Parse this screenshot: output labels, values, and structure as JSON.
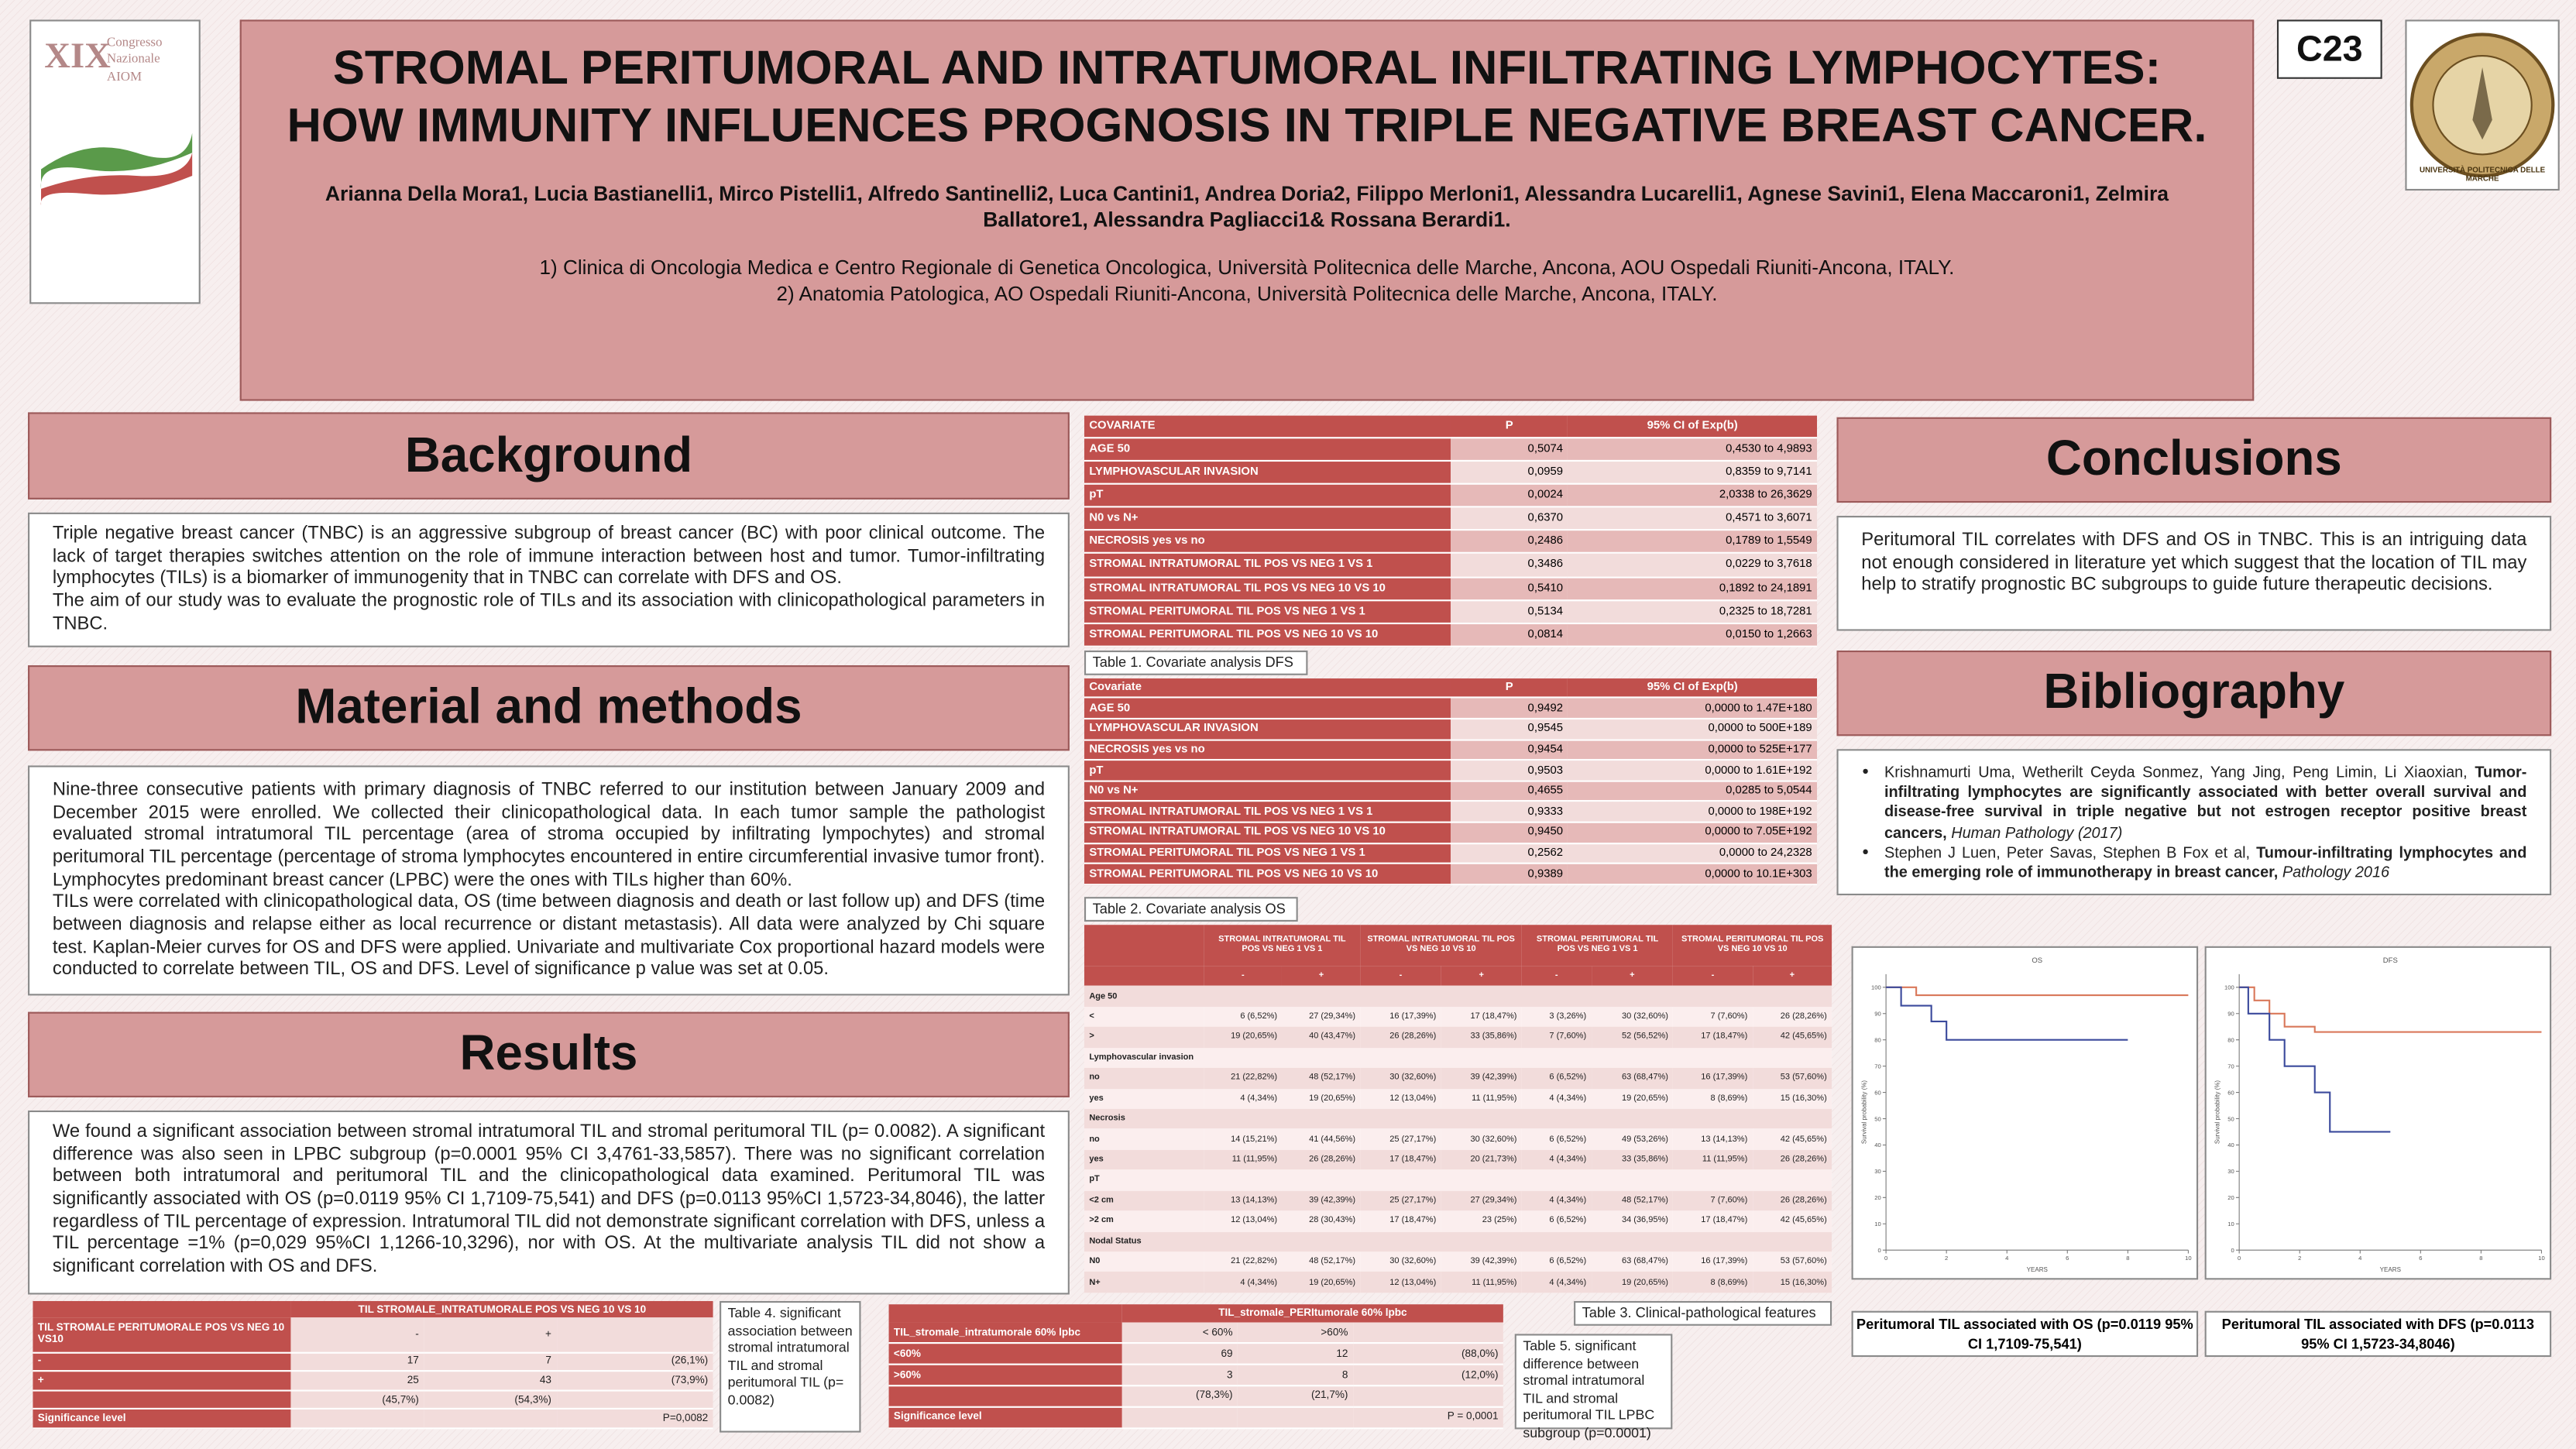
{
  "logo": {
    "number": "XIX",
    "text": "Congresso Nazionale AIOM"
  },
  "university_logo": {
    "text": "UNIVERSITÀ POLITECNICA DELLE MARCHE"
  },
  "header": {
    "title": "STROMAL PERITUMORAL AND INTRATUMORAL INFILTRATING LYMPHOCYTES: HOW IMMUNITY INFLUENCES PROGNOSIS IN TRIPLE NEGATIVE BREAST CANCER.",
    "authors": "Arianna Della Mora1, Lucia Bastianelli1, Mirco Pistelli1, Alfredo Santinelli2, Luca Cantini1, Andrea Doria2, Filippo Merloni1, Alessandra Lucarelli1, Agnese Savini1, Elena Maccaroni1, Zelmira Ballatore1, Alessandra Pagliacci1& Rossana Berardi1.",
    "affiliations": [
      "1) Clinica di Oncologia Medica e Centro Regionale di Genetica Oncologica, Università Politecnica delle Marche, Ancona, AOU Ospedali Riuniti-Ancona,  ITALY.",
      "2) Anatomia Patologica, AO Ospedali Riuniti-Ancona, Università Politecnica delle Marche, Ancona, ITALY."
    ],
    "code": "C23"
  },
  "sections": {
    "background": {
      "heading": "Background",
      "paragraphs": [
        "Triple negative breast cancer (TNBC) is an aggressive subgroup of breast cancer (BC) with poor clinical outcome. The lack of target therapies switches attention on the role of  immune interaction between host and tumor. Tumor-infiltrating lymphocytes (TILs) is a biomarker of immunogenity that in TNBC can correlate with DFS and OS.",
        "The aim of our study was to evaluate the prognostic role of TILs and its association with clinicopathological parameters in TNBC."
      ]
    },
    "methods": {
      "heading": "Material and methods",
      "paragraphs": [
        "Nine-three consecutive patients with primary diagnosis of TNBC referred to our institution between January 2009 and December 2015 were enrolled. We collected their clinicopathological data. In each tumor sample the pathologist evaluated stromal intratumoral TIL percentage (area of stroma occupied by infiltrating lympochytes) and stromal peritumoral TIL percentage (percentage of stroma lymphocytes encountered in entire circumferential invasive tumor front). Lymphocytes predominant breast cancer (LPBC) were the ones with TILs higher than 60%.",
        "TILs were correlated with clinicopathological data, OS (time between diagnosis and death or last follow up) and DFS (time between diagnosis and relapse either as local recurrence or distant metastasis). All data were analyzed by Chi square test. Kaplan-Meier curves for OS and DFS were applied. Univariate and multivariate Cox proportional hazard models were conducted to correlate between TIL, OS and DFS. Level of significance p value was set at 0.05."
      ]
    },
    "results": {
      "heading": "Results",
      "paragraphs": [
        "We found a significant association between stromal intratumoral TIL and stromal peritumoral TIL (p= 0.0082). A significant difference was also seen in LPBC subgroup (p=0.0001 95% CI 3,4761-33,5857). There was no significant correlation between both intratumoral and peritumoral TIL and the clinicopathological data examined. Peritumoral TIL was significantly associated with OS (p=0.0119 95% CI 1,7109-75,541) and DFS (p=0.0113 95%CI 1,5723-34,8046),  the latter regardless of TIL percentage of expression. Intratumoral TIL did not demonstrate significant correlation with DFS, unless a TIL percentage =1% (p=0,029 95%CI 1,1266-10,3296), nor with OS. At the multivariate analysis TIL did not show a significant correlation with OS  and DFS."
      ]
    },
    "conclusions": {
      "heading": "Conclusions",
      "paragraphs": [
        "Peritumoral TIL correlates with DFS and OS in TNBC. This is an intriguing data not enough considered in literature yet which suggest that the location of TIL may help to stratify prognostic BC subgroups to guide future therapeutic decisions."
      ]
    },
    "bibliography": {
      "heading": "Bibliography",
      "entries": [
        {
          "authors": "Krishnamurti Uma, Wetherilt Ceyda Sonmez, Yang Jing, Peng Limin, Li Xiaoxian, ",
          "title": "Tumor-infiltrating lymphocytes are significantly associated with better overall survival and disease-free survival in triple negative but not estrogen receptor positive breast cancers,",
          "source": " Human Pathology (2017)"
        },
        {
          "authors": "Stephen J Luen, Peter Savas, Stephen B Fox et al, ",
          "title": "Tumour-infiltrating lymphocytes and the emerging role of immunotherapy in breast cancer,",
          "source": " Pathology 2016"
        }
      ]
    }
  },
  "tables": [
    {
      "caption": "Table 1. Covariate analysis DFS",
      "header_rows": [
        [
          "COVARIATE",
          "P",
          "95% CI of Exp(b)"
        ]
      ],
      "rows": [
        [
          "AGE 50",
          "0,5074",
          "0,4530 to 4,9893"
        ],
        [
          "LYMPHOVASCULAR INVASION",
          "0,0959",
          "0,8359 to 9,7141"
        ],
        [
          "pT",
          "0,0024",
          "2,0338 to 26,3629"
        ],
        [
          "N0 vs N+",
          "0,6370",
          "0,4571 to 3,6071"
        ],
        [
          "NECROSIS yes vs no",
          "0,2486",
          "0,1789 to 1,5549"
        ],
        [
          "STROMAL INTRATUMORAL TIL POS VS NEG     1 VS 1",
          "0,3486",
          "0,0229 to 3,7618"
        ],
        [
          "STROMAL INTRATUMORAL TIL POS VS NEG     10 VS 10",
          "0,5410",
          "0,1892 to 24,1891"
        ],
        [
          "STROMAL PERITUMORAL TIL POS VS NEG 1 VS 1",
          "0,5134",
          "0,2325 to 18,7281"
        ],
        [
          "STROMAL PERITUMORAL TIL POS VS NEG  10 VS 10",
          "0,0814",
          "0,0150 to 1,2663"
        ]
      ]
    },
    {
      "caption": "Table 2. Covariate analysis OS",
      "header_rows": [
        [
          "Covariate",
          "P",
          "95% CI of Exp(b)"
        ]
      ],
      "rows": [
        [
          "AGE 50",
          "0,9492",
          "0,0000 to 1.47E+180"
        ],
        [
          "LYMPHOVASCULAR INVASION",
          "0,9545",
          "0,0000 to 500E+189"
        ],
        [
          "NECROSIS yes vs no",
          "0,9454",
          "0,0000 to 525E+177"
        ],
        [
          "pT",
          "0,9503",
          "0,0000 to 1.61E+192"
        ],
        [
          "N0 vs N+",
          "0,4655",
          "0,0285 to 5,0544"
        ],
        [
          "STROMAL INTRATUMORAL TIL POS VS NEG     1 VS 1",
          "0,9333",
          "0,0000 to 198E+192"
        ],
        [
          "STROMAL INTRATUMORAL TIL POS VS NEG     10 VS 10",
          "0,9450",
          "0,0000 to 7.05E+192"
        ],
        [
          "STROMAL PERITUMORAL TIL POS VS NEG  1 VS 1",
          "0,2562",
          "0,0000 to 24,2328"
        ],
        [
          "STROMAL PERITUMORAL TIL POS VS NEG  10 VS 10",
          "0,9389",
          "0,0000 to 10.1E+303"
        ]
      ]
    },
    {
      "caption": "Table 3. Clinical-pathological features",
      "header_rows": [
        [
          null,
          "STROMAL INTRATUMORAL TIL POS VS NEG 1 VS 1",
          "STROMAL INTRATUMORAL TIL POS VS NEG 10 VS 10",
          "STROMAL PERITUMORAL TIL POS VS NEG 1 VS 1",
          "STROMAL PERITUMORAL TIL POS VS NEG 10 VS 10"
        ],
        [
          null,
          "-",
          "+",
          "-",
          "+",
          "-",
          "+",
          "-",
          "+"
        ]
      ],
      "rows": [
        [
          "Age 50"
        ],
        [
          "<",
          "6 (6,52%)",
          "27 (29,34%)",
          "16 (17,39%)",
          "17 (18,47%)",
          "3 (3,26%)",
          "30 (32,60%)",
          "7 (7,60%)",
          "26 (28,26%)"
        ],
        [
          ">",
          "19 (20,65%)",
          "40 (43,47%)",
          "26 (28,26%)",
          "33 (35,86%)",
          "7 (7,60%)",
          "52 (56,52%)",
          "17 (18,47%)",
          "42 (45,65%)"
        ],
        [
          "Lymphovascular invasion"
        ],
        [
          "no",
          "21 (22,82%)",
          "48 (52,17%)",
          "30 (32,60%)",
          "39 (42,39%)",
          "6 (6,52%)",
          "63 (68,47%)",
          "16 (17,39%)",
          "53 (57,60%)"
        ],
        [
          "yes",
          "4 (4,34%)",
          "19 (20,65%)",
          "12 (13,04%)",
          "11 (11,95%)",
          "4 (4,34%)",
          "19 (20,65%)",
          "8 (8,69%)",
          "15 (16,30%)"
        ],
        [
          "Necrosis"
        ],
        [
          "no",
          "14 (15,21%)",
          "41 (44,56%)",
          "25 (27,17%)",
          "30 (32,60%)",
          "6 (6,52%)",
          "49 (53,26%)",
          "13 (14,13%)",
          "42 (45,65%)"
        ],
        [
          "yes",
          "11 (11,95%)",
          "26 (28,26%)",
          "17 (18,47%)",
          "20 (21,73%)",
          "4 (4,34%)",
          "33 (35,86%)",
          "11 (11,95%)",
          "26 (28,26%)"
        ],
        [
          "pT"
        ],
        [
          "<2 cm",
          "13 (14,13%)",
          "39 (42,39%)",
          "25 (27,17%)",
          "27 (29,34%)",
          "4 (4,34%)",
          "48 (52,17%)",
          "7 (7,60%)",
          "26 (28,26%)"
        ],
        [
          ">2 cm",
          "12 (13,04%)",
          "28 (30,43%)",
          "17 (18,47%)",
          "23 (25%)",
          "6 (6,52%)",
          "34 (36,95%)",
          "17 (18,47%)",
          "42 (45,65%)"
        ],
        [
          "Nodal Status"
        ],
        [
          "N0",
          "21 (22,82%)",
          "48 (52,17%)",
          "30 (32,60%)",
          "39 (42,39%)",
          "6 (6,52%)",
          "63 (68,47%)",
          "16 (17,39%)",
          "53 (57,60%)"
        ],
        [
          "N+",
          "4 (4,34%)",
          "19 (20,65%)",
          "12 (13,04%)",
          "11 (11,95%)",
          "4 (4,34%)",
          "19 (20,65%)",
          "8 (8,69%)",
          "15 (16,30%)"
        ]
      ]
    },
    {
      "caption": "Table 4. significant association between stromal intratumoral TIL and stromal peritumoral TIL (p= 0.0082)",
      "header_rows": [
        [
          null,
          "TIL STROMALE_INTRATUMORALE  POS VS NEG  10 VS 10"
        ]
      ],
      "rows": [
        [
          "TIL  STROMALE  PERITUMORALE  POS VS NEG  10 VS10",
          "-",
          "+",
          null
        ],
        [
          "-",
          "17",
          "7",
          "(26,1%)"
        ],
        [
          "+",
          "25",
          "43",
          "(73,9%)"
        ],
        [
          null,
          "(45,7%)",
          "(54,3%)",
          null
        ],
        [
          "Significance level",
          null,
          null,
          "P=0,0082"
        ]
      ]
    },
    {
      "caption": "Table 5. significant difference between stromal intratumoral TIL and stromal peritumoral TIL LPBC subgroup (p=0.0001)",
      "header_rows": [
        [
          null,
          "TIL_stromale_PERItumorale 60% lpbc"
        ]
      ],
      "rows": [
        [
          "TIL_stromale_intratumorale 60% lpbc",
          "< 60%",
          ">60%",
          null
        ],
        [
          "<60%",
          "69",
          "12",
          "(88,0%)"
        ],
        [
          ">60%",
          "3",
          "8",
          "(12,0%)"
        ],
        [
          null,
          "(78,3%)",
          "(21,7%)",
          null
        ],
        [
          "Significance level",
          null,
          null,
          "P = 0,0001"
        ]
      ]
    }
  ],
  "chart_data": [
    {
      "type": "line",
      "title": "OS",
      "caption": "Peritumoral TIL associated with OS (p=0.0119 95% CI 1,7109-75,541)",
      "x_label": "YEARS",
      "y_label": "Survival probability (%)",
      "xlim": [
        0,
        10
      ],
      "ylim": [
        0,
        105
      ],
      "xticks": [
        0,
        2,
        4,
        6,
        8,
        10
      ],
      "yticks": [
        0,
        10,
        20,
        30,
        40,
        50,
        60,
        70,
        80,
        90,
        100
      ],
      "series": [
        {
          "color": "#d9785a",
          "x": [
            0,
            1,
            1,
            10
          ],
          "values": [
            100,
            100,
            97,
            97
          ]
        },
        {
          "color": "#3b4a9c",
          "x": [
            0,
            0.5,
            0.5,
            1.5,
            1.5,
            2,
            2,
            8
          ],
          "values": [
            100,
            100,
            93,
            93,
            87,
            87,
            80,
            80
          ]
        }
      ]
    },
    {
      "type": "line",
      "title": "DFS",
      "caption": "Peritumoral TIL associated with DFS (p=0.0113 95% CI 1,5723-34,8046)",
      "x_label": "YEARS",
      "y_label": "Survival probability (%)",
      "xlim": [
        0,
        10
      ],
      "ylim": [
        0,
        105
      ],
      "xticks": [
        0,
        2,
        4,
        6,
        8,
        10
      ],
      "yticks": [
        0,
        10,
        20,
        30,
        40,
        50,
        60,
        70,
        80,
        90,
        100
      ],
      "series": [
        {
          "color": "#d9785a",
          "x": [
            0,
            0.5,
            0.5,
            1,
            1,
            1.5,
            1.5,
            2.5,
            2.5,
            10
          ],
          "values": [
            100,
            100,
            95,
            95,
            90,
            90,
            85,
            85,
            83,
            83
          ]
        },
        {
          "color": "#3b4a9c",
          "x": [
            0,
            0.3,
            0.3,
            1,
            1,
            1.5,
            1.5,
            2.5,
            2.5,
            3,
            3,
            5
          ],
          "values": [
            100,
            100,
            90,
            90,
            80,
            80,
            70,
            70,
            60,
            60,
            45,
            45
          ]
        }
      ]
    }
  ]
}
